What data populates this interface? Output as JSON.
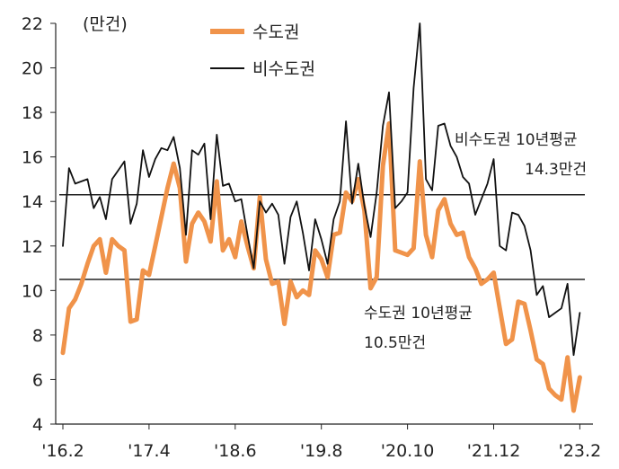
{
  "chart_data": {
    "type": "line",
    "unit_label": "(만건)",
    "ylim": [
      4,
      22
    ],
    "yticks": [
      4,
      6,
      8,
      10,
      12,
      14,
      16,
      18,
      20,
      22
    ],
    "xtick_labels": [
      "'16.2",
      "'17.4",
      "'18.6",
      "'19.8",
      "'20.10",
      "'21.12",
      "'23.2"
    ],
    "grid": false,
    "legend_position": "top-center",
    "colors": {
      "capital": "#f0934a",
      "noncapital": "#111111",
      "avgline": "#222222"
    },
    "series": [
      {
        "name": "수도권",
        "values": [
          7.2,
          9.2,
          9.6,
          10.3,
          11.2,
          12.0,
          12.3,
          10.8,
          12.3,
          12.0,
          11.8,
          8.6,
          8.7,
          10.9,
          10.7,
          12.0,
          13.3,
          14.6,
          15.7,
          14.6,
          11.3,
          13.0,
          13.5,
          13.1,
          12.2,
          14.9,
          11.8,
          12.3,
          11.5,
          13.1,
          12.0,
          11.0,
          14.2,
          11.4,
          10.3,
          10.4,
          8.5,
          10.4,
          9.7,
          10.0,
          9.8,
          11.8,
          11.4,
          10.6,
          12.5,
          12.6,
          14.4,
          14.0,
          15.0,
          13.6,
          10.1,
          10.6,
          15.6,
          17.5,
          11.8,
          11.7,
          11.6,
          11.9,
          15.8,
          12.5,
          11.5,
          13.6,
          14.1,
          13.0,
          12.5,
          12.6,
          11.5,
          11.0,
          10.3,
          10.5,
          10.8,
          9.2,
          7.6,
          7.8,
          9.5,
          9.4,
          8.2,
          6.9,
          6.7,
          5.6,
          5.3,
          5.1,
          7.0,
          4.6,
          6.1
        ]
      },
      {
        "name": "비수도권",
        "values": [
          12.0,
          15.5,
          14.8,
          14.9,
          15.0,
          13.7,
          14.2,
          13.2,
          15.0,
          15.4,
          15.8,
          13.0,
          13.9,
          16.3,
          15.1,
          15.9,
          16.4,
          16.3,
          16.9,
          15.5,
          12.5,
          16.3,
          16.1,
          16.6,
          13.2,
          17.0,
          14.7,
          14.8,
          14.0,
          14.1,
          12.5,
          11.0,
          14.0,
          13.5,
          13.9,
          13.4,
          11.2,
          13.3,
          14.0,
          12.6,
          10.9,
          13.2,
          12.3,
          11.2,
          13.2,
          14.0,
          17.6,
          13.9,
          15.7,
          13.8,
          12.4,
          14.4,
          17.4,
          18.9,
          13.7,
          14.0,
          14.4,
          19.1,
          22.0,
          15.0,
          14.5,
          17.4,
          17.5,
          16.5,
          16.0,
          15.1,
          14.8,
          13.4,
          14.1,
          14.8,
          15.9,
          12.0,
          11.8,
          13.5,
          13.4,
          12.9,
          11.8,
          9.8,
          10.2,
          8.8,
          9.0,
          9.2,
          10.3,
          7.1,
          9.0
        ]
      }
    ],
    "reference_lines": [
      {
        "value": 14.3,
        "label_line1": "비수도권 10년평균",
        "label_line2": "14.3만건"
      },
      {
        "value": 10.5,
        "label_line1": "수도권 10년평균",
        "label_line2": "10.5만건"
      }
    ]
  }
}
